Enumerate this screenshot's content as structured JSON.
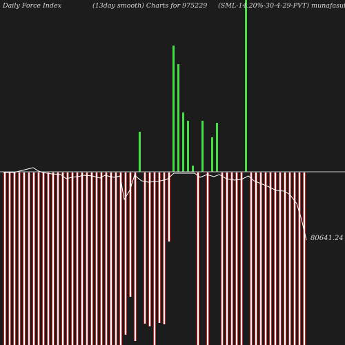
{
  "header": {
    "left": "Daily Force  Index",
    "center": "(13day smooth) Charts for 975229",
    "right": "(SML-14.20%-30-4-29-PVT) munafasutra.com"
  },
  "colors": {
    "background": "#1c1c1c",
    "positive_bar": "#44e044",
    "negative_bar": "#e02020",
    "negative_bar_inner": "#ffffff",
    "zero_line": "#c8c8c8",
    "smooth_line": "#ffffff",
    "text": "#d8d8d8"
  },
  "chart_data": {
    "type": "bar",
    "title": "Daily Force Index",
    "subtitle": "(13day smooth) Charts for 975229",
    "grid": false,
    "legend": "none",
    "last_value_label": "80641.24",
    "bar_count": 63,
    "series": [
      {
        "name": "Force Index",
        "values": [
          -255,
          -85,
          -88,
          -88,
          -92,
          -95,
          -92,
          -92,
          -92,
          -92,
          -92,
          -92,
          -92,
          -92,
          -92,
          -92,
          -94,
          -92,
          -92,
          -92,
          -92,
          -92,
          -92,
          -92,
          -92,
          -92,
          -155,
          -92,
          -190,
          -225,
          -92,
          -92,
          -92,
          -92,
          -92,
          -92,
          -92,
          -92,
          -92,
          -92,
          -92,
          -92,
          -92,
          -92,
          -92,
          -92,
          -92,
          -92,
          -92,
          -92,
          -92,
          -92,
          -92,
          -92,
          -92,
          -92,
          -92,
          -92,
          -92,
          -92,
          -92,
          -92,
          -92
        ]
      }
    ]
  }
}
